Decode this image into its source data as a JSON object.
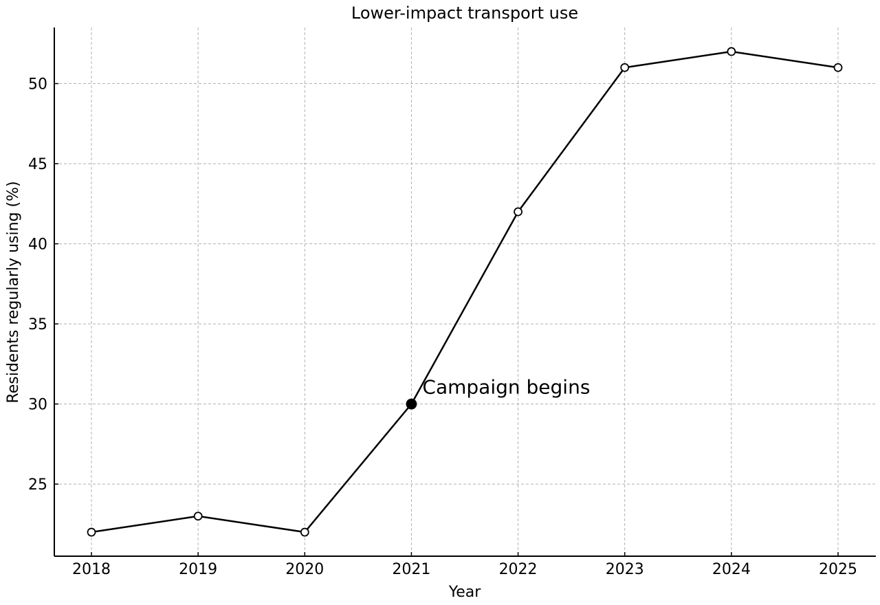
{
  "chart_data": {
    "type": "line",
    "title": "Lower-impact transport use",
    "xlabel": "Year",
    "ylabel": "Residents regularly using (%)",
    "categories": [
      "2018",
      "2019",
      "2020",
      "2021",
      "2022",
      "2023",
      "2024",
      "2025"
    ],
    "series": [
      {
        "values": [
          22,
          23,
          22,
          30,
          42,
          51,
          52,
          51
        ]
      }
    ],
    "ylim": [
      20.5,
      53.5
    ],
    "yticks": [
      25,
      30,
      35,
      40,
      45,
      50
    ],
    "grid": true,
    "line_color": "#000000",
    "marker": "open-circle",
    "annotation": {
      "text": "Campaign begins",
      "category": "2021",
      "value": 30,
      "marker": "filled-circle"
    }
  }
}
